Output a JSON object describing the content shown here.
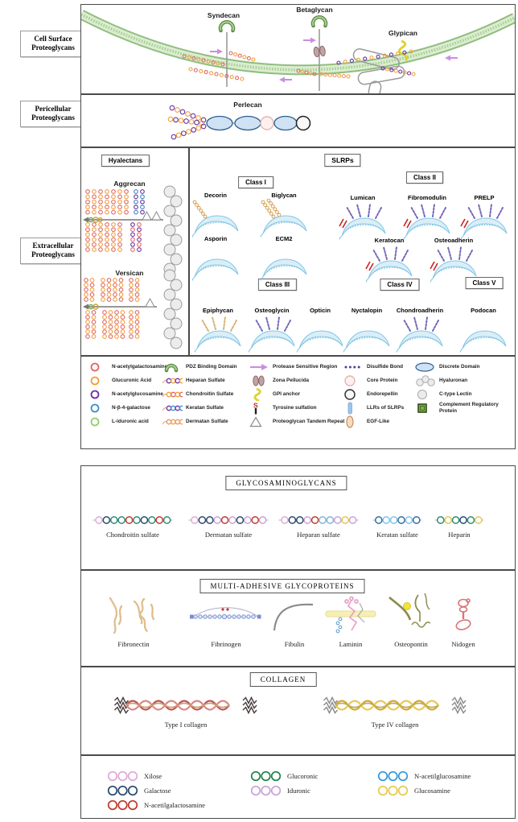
{
  "palette": {
    "membrane_green": "#8fbe7f",
    "membrane_light": "#dcedd0",
    "arrow_purple": "#c98fe0",
    "slrp_fill": "#daeef8",
    "slrp_stroke": "#7ec4e4",
    "spike_purple": "#7668b8",
    "spike_tan": "#d8b17a",
    "red_mark": "#cc2222",
    "bead_red": "#e06666",
    "bead_orange": "#f0a03a",
    "bead_purple": "#6a30a0",
    "bead_blue": "#3d85c6",
    "gray": "#9a9a9a"
  },
  "figure1": {
    "row_labels": [
      "Cell Surface Proteoglycans",
      "Pericellular Proteoglycans",
      "Extracellular Proteoglycans"
    ],
    "cell_surface": {
      "syndecan": "Syndecan",
      "betaglycan": "Betaglycan",
      "glypican": "Glypican"
    },
    "pericellular": {
      "perlecan": "Perlecan"
    },
    "hyalectans": {
      "title": "Hyalectans",
      "aggrecan": "Aggrecan",
      "versican": "Versican"
    },
    "slrps": {
      "title": "SLRPs",
      "classes": [
        {
          "label": "Class I",
          "members": [
            "Decorin",
            "Biglycan",
            "Asporin",
            "ECM2"
          ]
        },
        {
          "label": "Class II",
          "members": [
            "Lumican",
            "Fibromodulin",
            "PRELP",
            "Keratocan",
            "Osteoadherin"
          ]
        },
        {
          "label": "Class III",
          "members": [
            "Epiphycan",
            "Osteoglycin",
            "Opticin"
          ]
        },
        {
          "label": "Class IV",
          "members": [
            "Nyctalopin",
            "Chondroadherin"
          ]
        },
        {
          "label": "Class V",
          "members": [
            "Podocan"
          ]
        }
      ]
    },
    "legend": {
      "columns": [
        [
          {
            "icon": "sugar-circle",
            "color": "#e06666",
            "label": "N-acetylgalactosamine"
          },
          {
            "icon": "sugar-circle",
            "color": "#f0a03a",
            "label": "Glucuronic Acid"
          },
          {
            "icon": "sugar-circle",
            "color": "#6a30a0",
            "label": "N-acetylglucosamine"
          },
          {
            "icon": "sugar-circle",
            "color": "#3a8fd0",
            "label": "N-β-4-galactose"
          },
          {
            "icon": "sugar-circle",
            "color": "#8fd06a",
            "label": "L-iduronic acid"
          }
        ],
        [
          {
            "icon": "pdz",
            "color": "#5c8a46",
            "label": "PDZ Binding Domain"
          },
          {
            "icon": "chain",
            "colors": [
              "#6a30a0",
              "#f0a03a"
            ],
            "label": "Heparan Sulfate"
          },
          {
            "icon": "chain",
            "colors": [
              "#f0a03a",
              "#e06666"
            ],
            "label": "Chondroitin Sulfate"
          },
          {
            "icon": "chain",
            "colors": [
              "#6a30a0",
              "#3a8fd0"
            ],
            "label": "Keratan Sulfate"
          },
          {
            "icon": "chain",
            "colors": [
              "#e8926a",
              "#f0a03a"
            ],
            "label": "Dermatan Sulfate"
          }
        ],
        [
          {
            "icon": "arrow",
            "color": "#c98fe0",
            "label": "Protease Sensitive Region"
          },
          {
            "icon": "zona",
            "color": "#c2a3a3",
            "label": "Zona Pellucida"
          },
          {
            "icon": "gpi",
            "color": "#ddd22a",
            "label": "GPI anchor"
          },
          {
            "icon": "tyrosine",
            "color": "#cc2222",
            "label": "Tyrosine sulfation"
          },
          {
            "icon": "triangle",
            "color": "#888888",
            "label": "Proteoglycan Tandem Repeat"
          }
        ],
        [
          {
            "icon": "dots",
            "color": "#5a3a9a",
            "label": "Disulfide Bond"
          },
          {
            "icon": "circle-pink",
            "color": "#e3b6b1",
            "label": "Core Protein"
          },
          {
            "icon": "circle-black",
            "color": "#333333",
            "label": "Endorepellin"
          },
          {
            "icon": "bar",
            "color": "#9fc5e8",
            "label": "LLRs of SLRPs"
          },
          {
            "icon": "egf",
            "color": "#c09060",
            "label": "EGF-Like"
          }
        ],
        [
          {
            "icon": "domain",
            "color": "#2d5f8f",
            "label": "Discrete Domain"
          },
          {
            "icon": "hyaluronan",
            "color": "#aaaaaa",
            "label": "Hyaluronan"
          },
          {
            "icon": "lectin",
            "color": "#aaaaaa",
            "label": "C-type Lectin"
          },
          {
            "icon": "square",
            "color": "#7cb342",
            "label": "Complement Regulatory Protein"
          }
        ]
      ]
    }
  },
  "figure2": {
    "gag": {
      "title": "GLYCOSAMINOGLYCANS",
      "items": [
        {
          "name": "Chondroitin sulfate",
          "beads": [
            "#e0a8d8",
            "#27496d",
            "#2e8b74",
            "#2e8b74",
            "#c0392b",
            "#2e8b74",
            "#27496d",
            "#2e8b74",
            "#c0392b",
            "#2e8b74"
          ]
        },
        {
          "name": "Dermatan sulfate",
          "beads": [
            "#e0a8d8",
            "#27496d",
            "#27496d",
            "#c8a2d8",
            "#c0392b",
            "#c8a2d8",
            "#27496d",
            "#c8a2d8",
            "#c0392b",
            "#c8a2d8"
          ]
        },
        {
          "name": "Heparan sulfate",
          "beads": [
            "#e0a8d8",
            "#27496d",
            "#27496d",
            "#c8a2d8",
            "#c0392b",
            "#7fb3d9",
            "#7fb3d9",
            "#c8a2d8",
            "#e8c84a",
            "#c8a2d8"
          ]
        },
        {
          "name": "Keratan sulfate",
          "beads": [
            "#2e6da4",
            "#7fc4e8",
            "#7fc4e8",
            "#2e6da4",
            "#7fc4e8",
            "#2e6da4"
          ]
        },
        {
          "name": "Heparin",
          "beads": [
            "#2e8b74",
            "#e8c84a",
            "#2e8b74",
            "#27496d",
            "#2e8b74",
            "#e8c84a"
          ]
        }
      ]
    },
    "mag": {
      "title": "MULTI-ADHESIVE GLYCOPROTEINS",
      "items": [
        "Fibronectin",
        "Fibrinogen",
        "Fibulin",
        "Laminin",
        "Osteopontin",
        "Nidogen"
      ]
    },
    "collagen": {
      "title": "COLLAGEN",
      "items": [
        {
          "name": "Type I collagen",
          "strands": [
            "#c05555",
            "#d88888",
            "#c8a070"
          ],
          "ends": "#4a3a3a"
        },
        {
          "name": "Type IV collagen",
          "strands": [
            "#d8a830",
            "#e8c855",
            "#b8b060"
          ],
          "ends": "#8a8a8a"
        }
      ]
    },
    "legend": {
      "columns": [
        [
          {
            "label": "Xilose",
            "color": "#e0a8d8"
          },
          {
            "label": "Galactose",
            "color": "#27496d"
          },
          {
            "label": "N-acetilgalactosamine",
            "color": "#c0392b"
          }
        ],
        [
          {
            "label": "Glucoronic",
            "color": "#1e8449"
          },
          {
            "label": "Iduronic",
            "color": "#c8a2d8"
          }
        ],
        [
          {
            "label": "N-acetilglucosamine",
            "color": "#3498db"
          },
          {
            "label": "Glucosamine",
            "color": "#e8c84a"
          }
        ]
      ]
    }
  }
}
